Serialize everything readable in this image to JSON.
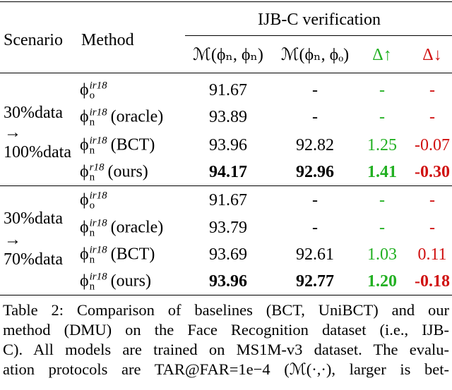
{
  "table": {
    "header": {
      "scenario": "Scenario",
      "method": "Method",
      "group": "IJB-C verification",
      "columns": [
        "ℳ(ϕₙ, ϕₙ)",
        "ℳ(ϕₙ, ϕₒ)",
        "Δ↑",
        "Δ↓"
      ]
    },
    "groups": [
      {
        "scenario": [
          "30%data",
          "→",
          "100%data"
        ],
        "rows": [
          {
            "method": {
              "base": "ϕ",
              "sub": "o",
              "sup": "ir18"
            },
            "cells": [
              "91.67",
              "-",
              "-",
              "-"
            ]
          },
          {
            "method": {
              "base": "ϕ",
              "sub": "n",
              "sup": "ir18",
              "suffix": "(oracle)"
            },
            "cells": [
              "93.89",
              "-",
              "-",
              "-"
            ]
          },
          {
            "method": {
              "base": "ϕ",
              "sub": "n",
              "sup": "ir18",
              "suffix": "(BCT)"
            },
            "cells": [
              "93.96",
              "92.82",
              "1.25",
              "-0.07"
            ]
          },
          {
            "method": {
              "base": "ϕ",
              "sub": "n",
              "sup": "r18",
              "suffix": "(ours)"
            },
            "cells": [
              "94.17",
              "92.96",
              "1.41",
              "-0.30"
            ],
            "bold": true
          }
        ]
      },
      {
        "scenario": [
          "30%data",
          "→",
          "70%data"
        ],
        "rows": [
          {
            "method": {
              "base": "ϕ",
              "sub": "o",
              "sup": "ir18"
            },
            "cells": [
              "91.67",
              "-",
              "-",
              "-"
            ]
          },
          {
            "method": {
              "base": "ϕ",
              "sub": "n",
              "sup": "ir18",
              "suffix": "(oracle)"
            },
            "cells": [
              "93.79",
              "-",
              "-",
              "-"
            ]
          },
          {
            "method": {
              "base": "ϕ",
              "sub": "n",
              "sup": "ir18",
              "suffix": "(BCT)"
            },
            "cells": [
              "93.69",
              "92.61",
              "1.03",
              "0.11"
            ]
          },
          {
            "method": {
              "base": "ϕ",
              "sub": "n",
              "sup": "ir18",
              "suffix": "(ours)"
            },
            "cells": [
              "93.96",
              "92.77",
              "1.20",
              "-0.18"
            ],
            "bold": true
          }
        ]
      }
    ],
    "column_colors": [
      "#000000",
      "#000000",
      "#22b022",
      "#d01010"
    ]
  },
  "caption": {
    "lines": [
      "Table 2: Comparison of baselines (BCT, UniBCT) and our",
      "method (DMU) on the Face Recognition dataset (i.e., IJB-",
      "C). All models are trained on MS1M-v3 dataset. The evalu-",
      "ation protocols are TAR@FAR=1e−4 (ℳ(·,·), larger is bet-"
    ]
  }
}
